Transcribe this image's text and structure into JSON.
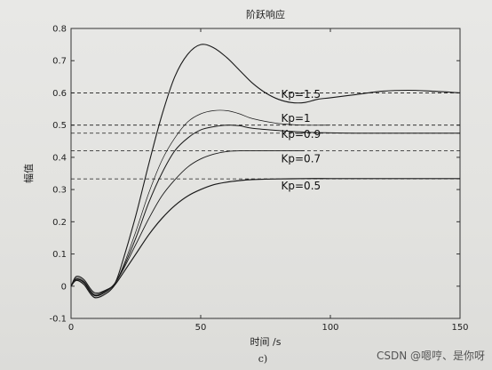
{
  "chart_data": {
    "type": "line",
    "title": "阶跃响应",
    "xlabel": "时间 /s",
    "ylabel": "幅值",
    "xlim": [
      0,
      150
    ],
    "ylim": [
      -0.1,
      0.8
    ],
    "xticks": [
      0,
      50,
      100,
      150
    ],
    "yticks": [
      -0.1,
      0,
      0.1,
      0.2,
      0.3,
      0.4,
      0.5,
      0.6,
      0.7,
      0.8
    ],
    "grid": false,
    "series": [
      {
        "name": "Kp=1.5",
        "steady_state": 0.6,
        "x": [
          0,
          2,
          5,
          9,
          14,
          17,
          20,
          25,
          30,
          35,
          40,
          45,
          50,
          55,
          60,
          65,
          70,
          75,
          80,
          85,
          90,
          95,
          100,
          110,
          120,
          130,
          140,
          150
        ],
        "y": [
          0,
          0.03,
          0.02,
          -0.02,
          -0.01,
          0.01,
          0.08,
          0.22,
          0.38,
          0.53,
          0.65,
          0.72,
          0.75,
          0.74,
          0.71,
          0.67,
          0.63,
          0.6,
          0.58,
          0.57,
          0.57,
          0.58,
          0.585,
          0.595,
          0.605,
          0.608,
          0.605,
          0.6
        ]
      },
      {
        "name": "Kp=1",
        "steady_state": 0.5,
        "x": [
          0,
          2,
          5,
          9,
          14,
          17,
          20,
          25,
          30,
          35,
          40,
          45,
          50,
          55,
          60,
          65,
          70,
          80,
          90,
          100
        ],
        "y": [
          0,
          0.025,
          0.015,
          -0.025,
          -0.01,
          0.01,
          0.06,
          0.17,
          0.29,
          0.39,
          0.46,
          0.51,
          0.535,
          0.545,
          0.545,
          0.535,
          0.52,
          0.505,
          0.5,
          0.5
        ]
      },
      {
        "name": "Kp=0.9",
        "steady_state": 0.475,
        "x": [
          0,
          2,
          5,
          9,
          14,
          17,
          20,
          25,
          30,
          35,
          40,
          45,
          50,
          55,
          60,
          65,
          70,
          80,
          90,
          100,
          110,
          120,
          130,
          140,
          150
        ],
        "y": [
          0,
          0.022,
          0.012,
          -0.028,
          -0.012,
          0.01,
          0.055,
          0.15,
          0.26,
          0.35,
          0.42,
          0.46,
          0.485,
          0.495,
          0.5,
          0.498,
          0.49,
          0.483,
          0.478,
          0.476,
          0.475,
          0.475,
          0.475,
          0.475,
          0.475
        ]
      },
      {
        "name": "Kp=0.7",
        "steady_state": 0.42,
        "x": [
          0,
          2,
          5,
          9,
          14,
          17,
          20,
          25,
          30,
          35,
          40,
          45,
          50,
          55,
          60,
          65,
          70,
          80,
          90
        ],
        "y": [
          0,
          0.02,
          0.01,
          -0.03,
          -0.015,
          0.01,
          0.05,
          0.13,
          0.21,
          0.28,
          0.33,
          0.37,
          0.395,
          0.41,
          0.418,
          0.42,
          0.42,
          0.42,
          0.42
        ]
      },
      {
        "name": "Kp=0.5",
        "steady_state": 0.333,
        "x": [
          0,
          2,
          5,
          9,
          14,
          17,
          20,
          25,
          30,
          35,
          40,
          45,
          50,
          55,
          60,
          65,
          70,
          80,
          90,
          100,
          110,
          120,
          130,
          140,
          150
        ],
        "y": [
          0,
          0.018,
          0.005,
          -0.035,
          -0.02,
          0.005,
          0.04,
          0.1,
          0.16,
          0.21,
          0.25,
          0.28,
          0.3,
          0.315,
          0.323,
          0.328,
          0.331,
          0.333,
          0.334,
          0.334,
          0.334,
          0.334,
          0.334,
          0.334,
          0.334
        ]
      }
    ],
    "annotations": [
      {
        "text": "Kp=1.5",
        "x": 81,
        "y": 0.585
      },
      {
        "text": "Kp=1",
        "x": 81,
        "y": 0.51
      },
      {
        "text": "Kp=0.9",
        "x": 81,
        "y": 0.46
      },
      {
        "text": "Kp=0.7",
        "x": 81,
        "y": 0.385
      },
      {
        "text": "Kp=0.5",
        "x": 81,
        "y": 0.3
      }
    ]
  },
  "caption": "c)",
  "watermark": "CSDN @嗯哼、是你呀",
  "colors": {
    "line": "#1a1a1a",
    "frame": "#333333",
    "background": "#e4e4e2"
  }
}
